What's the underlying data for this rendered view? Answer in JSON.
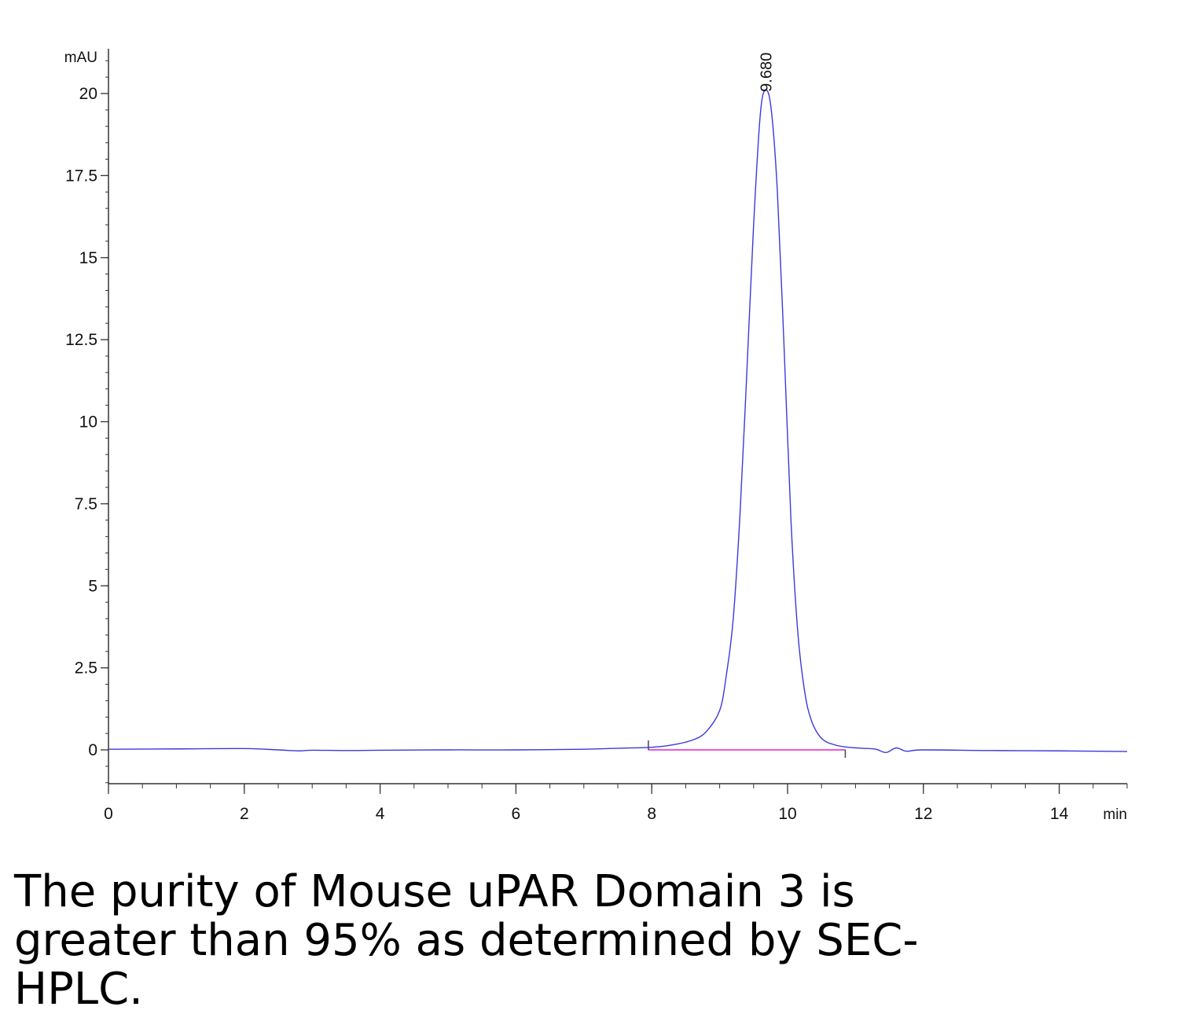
{
  "chart_data": {
    "type": "line",
    "title": "",
    "xlabel": "min",
    "ylabel": "mAU",
    "xlim": [
      0,
      15
    ],
    "ylim": [
      -1,
      21.5
    ],
    "grid": false,
    "x_ticks": [
      0,
      2,
      4,
      6,
      8,
      10,
      12,
      14
    ],
    "x_tick_labels": [
      "0",
      "2",
      "4",
      "6",
      "8",
      "10",
      "12",
      "14"
    ],
    "y_ticks": [
      0,
      2.5,
      5,
      7.5,
      10,
      12.5,
      15,
      17.5,
      20
    ],
    "y_tick_labels": [
      "0",
      "2.5",
      "5",
      "7.5",
      "10",
      "12.5",
      "15",
      "17.5",
      "20"
    ],
    "colors": {
      "trace": "#3a3adb",
      "baseline": "#e020d0",
      "axis": "#333333"
    },
    "series": [
      {
        "name": "",
        "x": [
          0,
          1,
          2,
          2.5,
          2.8,
          3,
          3.5,
          4,
          5,
          6,
          7,
          7.5,
          8,
          8.3,
          8.6,
          8.8,
          9.0,
          9.1,
          9.2,
          9.3,
          9.4,
          9.5,
          9.6,
          9.68,
          9.76,
          9.85,
          9.95,
          10.05,
          10.15,
          10.25,
          10.35,
          10.5,
          10.7,
          10.9,
          11.1,
          11.3,
          11.45,
          11.6,
          11.75,
          12,
          13,
          14,
          15
        ],
        "y": [
          0.02,
          0.03,
          0.04,
          0.0,
          -0.03,
          -0.01,
          -0.02,
          -0.01,
          0.0,
          0.0,
          0.02,
          0.05,
          0.08,
          0.15,
          0.3,
          0.55,
          1.2,
          2.3,
          4.0,
          7.2,
          11.5,
          16.0,
          19.4,
          20.1,
          19.5,
          17.0,
          12.2,
          7.0,
          3.6,
          1.8,
          0.9,
          0.35,
          0.15,
          0.08,
          0.05,
          0.02,
          -0.08,
          0.06,
          -0.04,
          0.0,
          -0.02,
          -0.03,
          -0.05
        ]
      }
    ],
    "baseline": {
      "x_start": 7.95,
      "x_end": 10.85,
      "y": 0.0
    },
    "integration_marks": [
      7.95,
      10.85
    ],
    "peak_labels": [
      {
        "x": 9.68,
        "y": 20.1,
        "text": "9.680"
      }
    ]
  },
  "caption": {
    "text": "The purity of Mouse uPAR Domain 3 is\ngreater than 95% as determined by SEC-\nHPLC."
  }
}
